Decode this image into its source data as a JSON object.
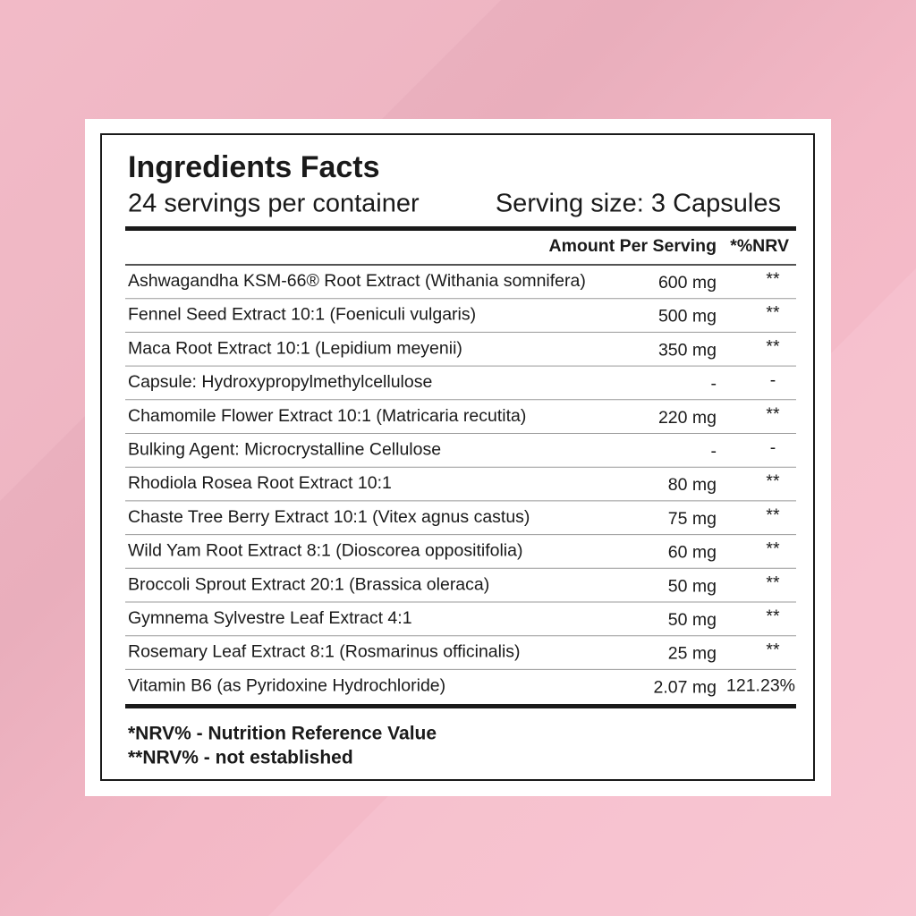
{
  "title": "Ingredients Facts",
  "servings": "24 servings per container",
  "serving_size": "Serving size: 3 Capsules",
  "table": {
    "header": {
      "amount": "Amount Per Serving",
      "nrv": "*%NRV"
    },
    "rows": [
      [
        "Ashwagandha KSM-66® Root Extract (Withania somnifera)",
        "600 mg",
        "**"
      ],
      [
        "Fennel Seed Extract 10:1 (Foeniculi vulgaris)",
        "500 mg",
        "**"
      ],
      [
        "Maca Root Extract 10:1 (Lepidium meyenii)",
        "350 mg",
        "**"
      ],
      [
        "Capsule: Hydroxypropylmethylcellulose",
        "-",
        "-"
      ],
      [
        "Chamomile Flower Extract 10:1 (Matricaria recutita)",
        "220 mg",
        "**"
      ],
      [
        "Bulking Agent: Microcrystalline Cellulose",
        "-",
        "-"
      ],
      [
        "Rhodiola Rosea Root Extract 10:1",
        "80 mg",
        "**"
      ],
      [
        "Chaste Tree Berry Extract 10:1 (Vitex agnus castus)",
        "75 mg",
        "**"
      ],
      [
        "Wild Yam Root Extract 8:1 (Dioscorea oppositifolia)",
        "60 mg",
        "**"
      ],
      [
        "Broccoli Sprout Extract 20:1 (Brassica oleraca)",
        "50 mg",
        "**"
      ],
      [
        "Gymnema Sylvestre Leaf Extract 4:1",
        "50 mg",
        "**"
      ],
      [
        "Rosemary Leaf Extract 8:1 (Rosmarinus officinalis)",
        "25 mg",
        "**"
      ],
      [
        "Vitamin B6 (as Pyridoxine Hydrochloride)",
        "2.07 mg",
        "121.23%"
      ]
    ]
  },
  "footnotes": [
    "*NRV% - Nutrition Reference Value",
    "**NRV% - not established"
  ]
}
